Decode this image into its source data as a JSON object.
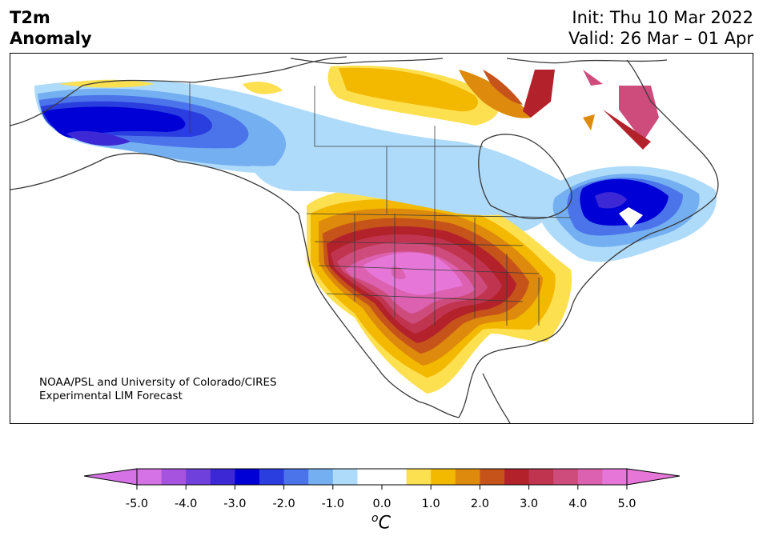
{
  "title": {
    "line1": "T2m",
    "line2": "Anomaly",
    "init": "Init: Thu 10 Mar 2022",
    "valid": "Valid: 26 Mar – 01 Apr"
  },
  "credit": {
    "line1": "NOAA/PSL and University of Colorado/CIRES",
    "line2": "Experimental LIM Forecast"
  },
  "colorbar": {
    "unit_super": "o",
    "unit_main": "C",
    "ticks": [
      "-5.0",
      "-4.0",
      "-3.0",
      "-2.0",
      "-1.0",
      "0.0",
      "1.0",
      "2.0",
      "3.0",
      "4.0",
      "5.0"
    ],
    "colors": [
      "#d572e6",
      "#a653e0",
      "#7040dd",
      "#3c28d5",
      "#0000d6",
      "#2a3ddf",
      "#4b74ea",
      "#74aff1",
      "#aedbfa",
      "#ffffff",
      "#ffffff",
      "#fde050",
      "#f3b800",
      "#de8a0c",
      "#c6541a",
      "#b3222b",
      "#c03450",
      "#ce4c7c",
      "#dc61b0",
      "#e677d8"
    ],
    "low_color": "#d572e6",
    "high_color": "#e677d8"
  }
}
